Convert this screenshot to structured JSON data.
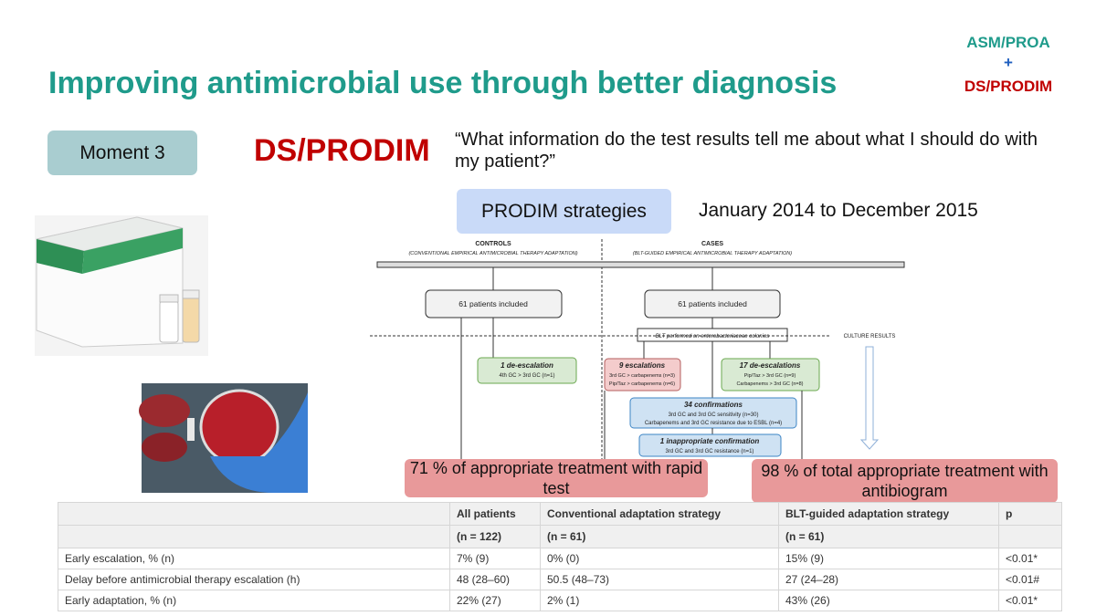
{
  "header": {
    "title": "Improving antimicrobial use through better diagnosis",
    "badge": [
      "ASM/PROA",
      "+",
      "DS/PRODIM"
    ]
  },
  "moment": "Moment 3",
  "program": "DS/PRODIM",
  "quote": "“What information do the test results tell me about what I should do with my patient?”",
  "strategies": "PRODIM strategies",
  "period": "January 2014 to December 2015",
  "flowchart": {
    "controls": {
      "title": "CONTROLS",
      "subtitle": "(CONVENTIONAL EMPIRICAL ANTIMICROBIAL THERAPY ADAPTATION)"
    },
    "cases": {
      "title": "CASES",
      "subtitle": "(BLT-GUIDED EMPIRICAL ANTIMICROBIAL THERAPY ADAPTATION)"
    },
    "included": [
      "61 patients included",
      "61 patients included"
    ],
    "blt": "BLT performed on enterobacteriaceae colonies",
    "culture": "CULTURE RESULTS",
    "nodes": [
      {
        "title": "1 de-escalation",
        "lines": [
          "4th GC > 3rd GC (n=1)"
        ]
      },
      {
        "title": "9 escalations",
        "lines": [
          "3rd GC > carbapenems (n=3)",
          "Pip/Taz > carbapenems (n=6)"
        ]
      },
      {
        "title": "17 de-escalations",
        "lines": [
          "Pip/Taz > 3rd GC (n=9)",
          "Carbapenems > 3rd GC (n=8)"
        ]
      },
      {
        "title": "34 confirmations",
        "lines": [
          "3rd GC and 3rd GC sensitivity (n=30)",
          "Carbapenems and 3rd GC resistance due to ESBL (n=4)"
        ]
      },
      {
        "title": "1 inappropriate confirmation",
        "lines": [
          "3rd GC and 3rd GC resistance (n=1)"
        ]
      }
    ]
  },
  "callouts": [
    "71 % of appropriate treatment with rapid test",
    "98 % of total appropriate treatment with antibiogram"
  ],
  "table": {
    "columns": [
      "All patients",
      "Conventional adaptation strategy",
      "BLT-guided adaptation strategy",
      "p"
    ],
    "counts": [
      "(n = 122)",
      "(n = 61)",
      "(n = 61)"
    ],
    "rows": [
      [
        "Early escalation, % (n)",
        "7% (9)",
        "0% (0)",
        "15% (9)",
        "<0.01*"
      ],
      [
        "Delay before antimicrobial therapy escalation (h)",
        "48 (28–60)",
        "50.5 (48–73)",
        "27 (24–28)",
        "<0.01#"
      ],
      [
        "Early adaptation, % (n)",
        "22% (27)",
        "2% (1)",
        "43% (26)",
        "<0.01*"
      ]
    ]
  }
}
